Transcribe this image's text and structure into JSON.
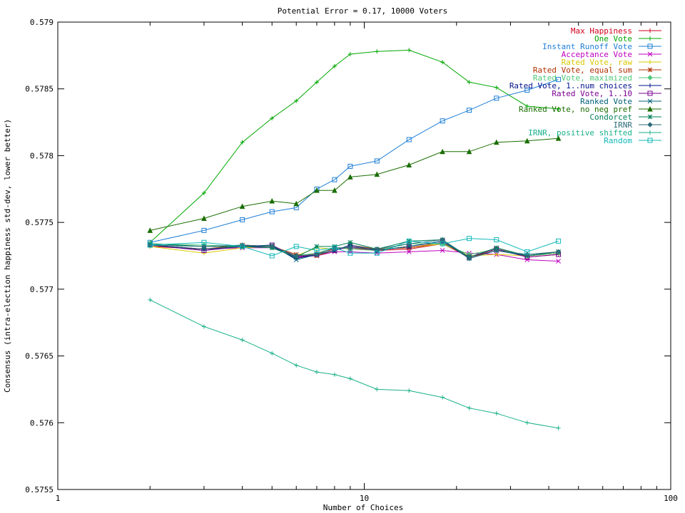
{
  "chart_data": {
    "type": "line",
    "title": "Potential Error = 0.17, 10000 Voters",
    "xlabel": "Number of Choices",
    "ylabel": "Consensus (intra-election happiness std-dev, lower better)",
    "xscale": "log",
    "xlim": [
      1,
      100
    ],
    "ylim": [
      0.5755,
      0.579
    ],
    "x_ticks": [
      1,
      10,
      100
    ],
    "x_tick_labels": [
      "1",
      "10",
      "100"
    ],
    "y_ticks": [
      0.5755,
      0.576,
      0.5765,
      0.577,
      0.5775,
      0.578,
      0.5785,
      0.579
    ],
    "y_tick_labels": [
      "0.5755",
      "0.576",
      "0.5765",
      "0.577",
      "0.5775",
      "0.578",
      "0.5785",
      "0.579"
    ],
    "grid": false,
    "legend_position": "top-right",
    "x": [
      2,
      3,
      4,
      5,
      6,
      7,
      8,
      9,
      11,
      14,
      18,
      22,
      27,
      34,
      43
    ],
    "series": [
      {
        "name": "Max Happiness",
        "color": "#d0001c",
        "marker": "plus",
        "values": [
          0.57732,
          0.5773,
          0.57733,
          0.57732,
          0.57724,
          0.57727,
          0.5773,
          0.57731,
          0.57729,
          0.5773,
          0.57734,
          0.57724,
          0.57731,
          0.57724,
          0.57726
        ]
      },
      {
        "name": "One Vote",
        "color": "#00a800",
        "marker": "plus",
        "values": [
          0.57735,
          0.57772,
          0.5781,
          0.57828,
          0.57841,
          0.57855,
          0.57867,
          0.57876,
          0.57878,
          0.57879,
          0.5787,
          0.57855,
          0.57851,
          0.57837,
          0.57835
        ]
      },
      {
        "name": "Instant Runoff Vote",
        "color": "#1e7fd6",
        "marker": "square",
        "values": [
          0.57735,
          0.57744,
          0.57752,
          0.57758,
          0.57761,
          0.57775,
          0.57782,
          0.57792,
          0.57796,
          0.57812,
          0.57826,
          0.57834,
          0.57843,
          0.57849,
          0.57857
        ]
      },
      {
        "name": "Acceptance Vote",
        "color": "#c000c0",
        "marker": "x",
        "values": [
          0.57733,
          0.5773,
          0.57731,
          0.57731,
          0.57724,
          0.57725,
          0.57728,
          0.57728,
          0.57727,
          0.57728,
          0.57729,
          0.57727,
          0.57726,
          0.57722,
          0.57721
        ]
      },
      {
        "name": "Rated Vote, raw",
        "color": "#d8c800",
        "marker": "plus",
        "values": [
          0.57732,
          0.57727,
          0.57731,
          0.57732,
          0.57725,
          0.57731,
          0.5773,
          0.57731,
          0.5773,
          0.57731,
          0.57734,
          0.57725,
          0.57726,
          0.57725,
          0.57727
        ]
      },
      {
        "name": "Rated Vote, equal sum",
        "color": "#b03000",
        "marker": "star",
        "values": [
          0.57733,
          0.5773,
          0.57733,
          0.57732,
          0.57726,
          0.57725,
          0.57729,
          0.57733,
          0.5773,
          0.57731,
          0.57735,
          0.57724,
          0.57729,
          0.57725,
          0.57727
        ]
      },
      {
        "name": "Rated Vote, maximized",
        "color": "#50c878",
        "marker": "diamond",
        "values": [
          0.57734,
          0.57733,
          0.57732,
          0.57731,
          0.57725,
          0.57727,
          0.57731,
          0.5773,
          0.57729,
          0.57734,
          0.57734,
          0.57726,
          0.5773,
          0.57725,
          0.57727
        ]
      },
      {
        "name": "Rated Vote, 1..num choices",
        "color": "#00108c",
        "marker": "plus",
        "values": [
          0.57733,
          0.57729,
          0.57732,
          0.57732,
          0.57723,
          0.57726,
          0.57729,
          0.57733,
          0.57729,
          0.57732,
          0.57736,
          0.57723,
          0.57729,
          0.57725,
          0.57728
        ]
      },
      {
        "name": "Rated Vote, 1..10",
        "color": "#7a0090",
        "marker": "square",
        "values": [
          0.57733,
          0.57729,
          0.57732,
          0.57733,
          0.57724,
          0.57726,
          0.57729,
          0.57732,
          0.57729,
          0.57732,
          0.57736,
          0.57724,
          0.5773,
          0.57724,
          0.57726
        ]
      },
      {
        "name": "Ranked Vote",
        "color": "#00607a",
        "marker": "x",
        "values": [
          0.57733,
          0.5773,
          0.57732,
          0.57733,
          0.57722,
          0.57726,
          0.57729,
          0.57733,
          0.57729,
          0.57732,
          0.57736,
          0.57723,
          0.57729,
          0.57725,
          0.57728
        ]
      },
      {
        "name": "Ranked Vote, no neg pref",
        "color": "#1a6e00",
        "marker": "triangle",
        "values": [
          0.57744,
          0.57753,
          0.57762,
          0.57766,
          0.57764,
          0.57774,
          0.57774,
          0.57784,
          0.57786,
          0.57793,
          0.57803,
          0.57803,
          0.5781,
          0.57811,
          0.57813
        ]
      },
      {
        "name": "Condorcet",
        "color": "#00805a",
        "marker": "star",
        "values": [
          0.57734,
          0.57732,
          0.57732,
          0.57731,
          0.57724,
          0.57732,
          0.57732,
          0.57735,
          0.5773,
          0.57736,
          0.57737,
          0.57724,
          0.57731,
          0.57725,
          0.57728
        ]
      },
      {
        "name": "IRNR",
        "color": "#2c6c7a",
        "marker": "diamond",
        "values": [
          0.57733,
          0.57732,
          0.57733,
          0.57732,
          0.57725,
          0.57726,
          0.57731,
          0.57731,
          0.5773,
          0.57734,
          0.57737,
          0.57723,
          0.57729,
          0.57726,
          0.57728
        ]
      },
      {
        "name": "IRNR, positive shifted",
        "color": "#18b088",
        "marker": "plus",
        "values": [
          0.57692,
          0.57672,
          0.57662,
          0.57652,
          0.57643,
          0.57638,
          0.57636,
          0.57633,
          0.57625,
          0.57624,
          0.57619,
          0.57611,
          0.57607,
          0.576,
          0.57596
        ]
      },
      {
        "name": "Random",
        "color": "#10b8b8",
        "marker": "square",
        "values": [
          0.57733,
          0.57735,
          0.57732,
          0.57725,
          0.57732,
          0.57729,
          0.57731,
          0.57727,
          0.57727,
          0.57736,
          0.57734,
          0.57738,
          0.57737,
          0.57728,
          0.57736
        ]
      }
    ]
  }
}
